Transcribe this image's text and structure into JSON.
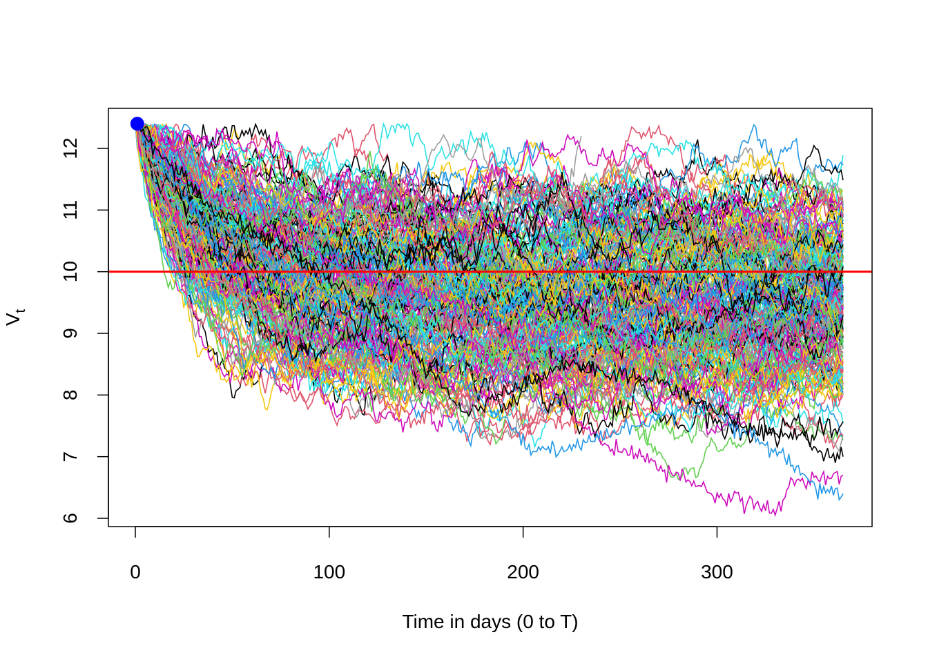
{
  "chart_data": {
    "type": "line",
    "title": "",
    "xlabel": "Time in days (0 to T)",
    "ylabel": "V",
    "ylabel_subscript": "t",
    "xlim": [
      0,
      365
    ],
    "ylim": [
      6.1,
      12.4
    ],
    "x_ticks": [
      0,
      100,
      200,
      300
    ],
    "y_ticks": [
      6,
      7,
      8,
      9,
      10,
      11,
      12
    ],
    "grid": false,
    "legend": "none",
    "n_days": 365,
    "start_point": {
      "x": 1,
      "y": 12.4,
      "color": "#0000ff"
    },
    "threshold": {
      "y": 10,
      "color": "#ff0000"
    },
    "series_palette": [
      "#000000",
      "#DF536B",
      "#61D04F",
      "#2297E6",
      "#28E2E5",
      "#CD0BBC",
      "#F5C710",
      "#9E9E9E"
    ],
    "simulation": {
      "paths": 220,
      "barrier_start": 12.4,
      "reflect_cap": 12.4
    },
    "notable_series": [
      {
        "color": "#CD0BBC",
        "points": [
          [
            0,
            12.4
          ],
          [
            20,
            11.6
          ],
          [
            60,
            10.8
          ],
          [
            120,
            9.9
          ],
          [
            180,
            9.4
          ],
          [
            240,
            7.2
          ],
          [
            260,
            7.0
          ],
          [
            300,
            6.4
          ],
          [
            330,
            6.1
          ],
          [
            340,
            6.6
          ],
          [
            365,
            6.7
          ]
        ]
      },
      {
        "color": "#2297E6",
        "points": [
          [
            0,
            12.4
          ],
          [
            30,
            11.0
          ],
          [
            80,
            10.0
          ],
          [
            140,
            9.0
          ],
          [
            190,
            7.6
          ],
          [
            205,
            7.1
          ],
          [
            230,
            7.2
          ],
          [
            290,
            7.9
          ],
          [
            340,
            6.9
          ],
          [
            350,
            6.5
          ],
          [
            365,
            6.4
          ]
        ]
      },
      {
        "color": "#DF536B",
        "points": [
          [
            0,
            12.4
          ],
          [
            15,
            11.2
          ],
          [
            40,
            10.0
          ],
          [
            60,
            9.4
          ],
          [
            80,
            8.3
          ],
          [
            110,
            8.6
          ],
          [
            130,
            7.8
          ],
          [
            145,
            7.6
          ],
          [
            170,
            8.0
          ],
          [
            200,
            7.7
          ],
          [
            230,
            7.5
          ]
        ]
      },
      {
        "color": "#000000",
        "points": [
          [
            0,
            12.4
          ],
          [
            40,
            11.0
          ],
          [
            80,
            10.3
          ],
          [
            130,
            9.2
          ],
          [
            170,
            7.7
          ],
          [
            220,
            8.5
          ],
          [
            270,
            8.2
          ],
          [
            320,
            7.4
          ],
          [
            345,
            7.3
          ],
          [
            355,
            7.0
          ],
          [
            365,
            7.0
          ]
        ]
      },
      {
        "color": "#9E9E9E",
        "points": [
          [
            0,
            12.4
          ],
          [
            15,
            11.0
          ],
          [
            25,
            10.2
          ],
          [
            60,
            9.5
          ],
          [
            110,
            8.6
          ],
          [
            150,
            8.2
          ],
          [
            170,
            7.8
          ],
          [
            200,
            8.6
          ],
          [
            230,
            12.2
          ]
        ]
      }
    ]
  }
}
